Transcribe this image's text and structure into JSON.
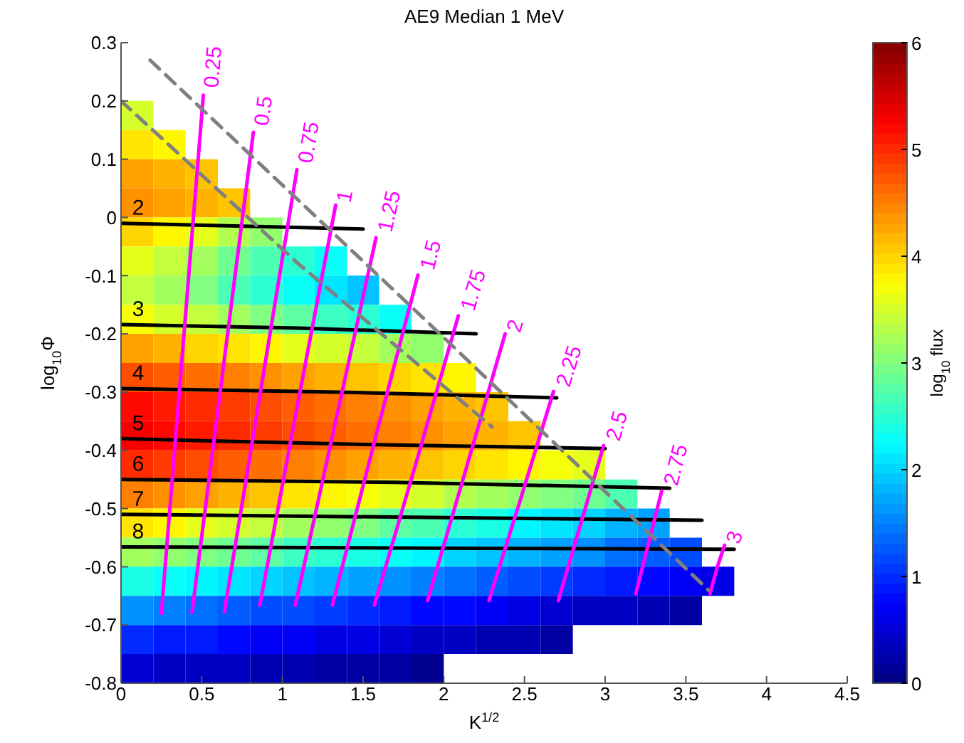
{
  "chart_data": {
    "type": "heatmap",
    "title": "AE9 Median 1 MeV",
    "xlabel": "K$^{1/2}$",
    "ylabel": "log$_{10}$Φ",
    "clabel": "log$_{10}$ flux",
    "x": [
      0.1,
      0.3,
      0.5,
      0.7,
      0.9,
      1.1,
      1.3,
      1.5,
      1.7,
      1.9,
      2.1,
      2.3,
      2.5,
      2.7,
      2.9,
      3.1,
      3.3,
      3.5,
      3.7
    ],
    "y": [
      0.175,
      0.125,
      0.075,
      0.025,
      -0.025,
      -0.075,
      -0.125,
      -0.175,
      -0.225,
      -0.275,
      -0.325,
      -0.375,
      -0.425,
      -0.475,
      -0.525,
      -0.575,
      -0.625,
      -0.675,
      -0.725,
      -0.775
    ],
    "cells": [
      [
        3.5,
        null,
        null,
        null,
        null,
        null,
        null,
        null,
        null,
        null,
        null,
        null,
        null,
        null,
        null,
        null,
        null,
        null,
        null
      ],
      [
        3.9,
        3.8,
        null,
        null,
        null,
        null,
        null,
        null,
        null,
        null,
        null,
        null,
        null,
        null,
        null,
        null,
        null,
        null,
        null
      ],
      [
        4.3,
        4.2,
        4.1,
        null,
        null,
        null,
        null,
        null,
        null,
        null,
        null,
        null,
        null,
        null,
        null,
        null,
        null,
        null,
        null
      ],
      [
        4.4,
        4.3,
        4.2,
        4.1,
        null,
        null,
        null,
        null,
        null,
        null,
        null,
        null,
        null,
        null,
        null,
        null,
        null,
        null,
        null
      ],
      [
        4.0,
        3.8,
        3.6,
        3.3,
        3.1,
        null,
        null,
        null,
        null,
        null,
        null,
        null,
        null,
        null,
        null,
        null,
        null,
        null,
        null
      ],
      [
        3.6,
        3.4,
        3.2,
        2.9,
        2.7,
        2.5,
        2.3,
        null,
        null,
        null,
        null,
        null,
        null,
        null,
        null,
        null,
        null,
        null,
        null
      ],
      [
        3.4,
        3.2,
        3.0,
        2.7,
        2.5,
        2.3,
        2.1,
        1.9,
        null,
        null,
        null,
        null,
        null,
        null,
        null,
        null,
        null,
        null,
        null
      ],
      [
        3.7,
        3.5,
        3.4,
        3.2,
        3.0,
        2.8,
        2.6,
        2.5,
        2.3,
        null,
        null,
        null,
        null,
        null,
        null,
        null,
        null,
        null,
        null
      ],
      [
        4.3,
        4.2,
        4.0,
        3.9,
        3.8,
        3.6,
        3.5,
        3.4,
        3.2,
        3.1,
        null,
        null,
        null,
        null,
        null,
        null,
        null,
        null,
        null
      ],
      [
        4.8,
        4.7,
        4.6,
        4.5,
        4.4,
        4.3,
        4.2,
        4.1,
        4.0,
        3.9,
        3.8,
        null,
        null,
        null,
        null,
        null,
        null,
        null,
        null
      ],
      [
        5.2,
        5.1,
        5.0,
        4.9,
        4.8,
        4.7,
        4.6,
        4.5,
        4.4,
        4.3,
        4.2,
        4.1,
        null,
        null,
        null,
        null,
        null,
        null,
        null
      ],
      [
        5.3,
        5.2,
        5.1,
        5.0,
        4.9,
        4.8,
        4.7,
        4.6,
        4.5,
        4.4,
        4.3,
        4.2,
        4.1,
        null,
        null,
        null,
        null,
        null,
        null
      ],
      [
        5.0,
        4.9,
        4.8,
        4.7,
        4.6,
        4.5,
        4.4,
        4.3,
        4.2,
        4.1,
        4.0,
        3.9,
        3.8,
        3.7,
        3.6,
        null,
        null,
        null,
        null
      ],
      [
        4.5,
        4.4,
        4.3,
        4.2,
        4.1,
        3.9,
        3.8,
        3.7,
        3.6,
        3.5,
        3.3,
        3.2,
        3.1,
        3.0,
        2.9,
        2.7,
        null,
        null,
        null
      ],
      [
        3.9,
        3.8,
        3.6,
        3.5,
        3.4,
        3.2,
        3.1,
        3.0,
        2.8,
        2.7,
        2.5,
        2.4,
        2.2,
        2.1,
        2.0,
        1.8,
        1.7,
        null,
        null
      ],
      [
        3.2,
        3.1,
        3.0,
        2.9,
        2.8,
        2.6,
        2.5,
        2.4,
        2.3,
        2.2,
        2.0,
        1.9,
        1.8,
        1.7,
        1.6,
        1.4,
        1.3,
        1.2,
        null
      ],
      [
        2.4,
        2.3,
        2.2,
        2.1,
        2.0,
        1.9,
        1.8,
        1.7,
        1.6,
        1.5,
        1.4,
        1.3,
        1.2,
        1.1,
        1.0,
        0.9,
        0.8,
        0.7,
        0.6
      ],
      [
        1.6,
        1.5,
        1.4,
        1.3,
        1.2,
        1.2,
        1.1,
        1.0,
        0.9,
        0.8,
        0.8,
        0.7,
        0.6,
        0.5,
        0.4,
        0.4,
        0.3,
        0.2,
        null
      ],
      [
        1.0,
        0.9,
        0.9,
        0.8,
        0.7,
        0.7,
        0.6,
        0.6,
        0.5,
        0.4,
        0.4,
        0.3,
        0.3,
        0.2,
        null,
        null,
        null,
        null,
        null
      ],
      [
        0.5,
        0.4,
        0.4,
        0.4,
        0.3,
        0.3,
        0.2,
        0.2,
        0.2,
        0.1,
        null,
        null,
        null,
        null,
        null,
        null,
        null,
        null,
        null
      ]
    ],
    "clim": [
      0,
      6
    ],
    "cticks": [
      0,
      1,
      2,
      3,
      4,
      5,
      6
    ],
    "xlim": [
      0,
      4.5
    ],
    "xticks": [
      0,
      0.5,
      1,
      1.5,
      2,
      2.5,
      3,
      3.5,
      4,
      4.5
    ],
    "ylim": [
      -0.8,
      0.3
    ],
    "yticks": [
      -0.8,
      -0.7,
      -0.6,
      -0.5,
      -0.4,
      -0.3,
      -0.2,
      -0.1,
      0,
      0.1,
      0.2,
      0.3
    ],
    "series": [
      {
        "type": "line",
        "name": "2",
        "color": "#000000",
        "x": [
          0,
          0.75,
          1.5
        ],
        "values": [
          -0.01,
          -0.015,
          -0.02
        ]
      },
      {
        "type": "line",
        "name": "3",
        "color": "#000000",
        "x": [
          0,
          1.1,
          2.2
        ],
        "values": [
          -0.184,
          -0.19,
          -0.2
        ]
      },
      {
        "type": "line",
        "name": "4",
        "color": "#000000",
        "x": [
          0,
          1.35,
          2.7
        ],
        "values": [
          -0.294,
          -0.3,
          -0.31
        ]
      },
      {
        "type": "line",
        "name": "5",
        "color": "#000000",
        "x": [
          0,
          1.5,
          3.0
        ],
        "values": [
          -0.38,
          -0.39,
          -0.397
        ]
      },
      {
        "type": "line",
        "name": "6",
        "color": "#000000",
        "x": [
          0,
          1.7,
          3.4
        ],
        "values": [
          -0.45,
          -0.455,
          -0.465
        ]
      },
      {
        "type": "line",
        "name": "7",
        "color": "#000000",
        "x": [
          0,
          1.8,
          3.6
        ],
        "values": [
          -0.51,
          -0.515,
          -0.52
        ]
      },
      {
        "type": "line",
        "name": "8",
        "color": "#000000",
        "x": [
          0,
          1.9,
          3.8
        ],
        "values": [
          -0.566,
          -0.568,
          -0.57
        ]
      },
      {
        "type": "line",
        "name": "0.25",
        "color": "#ff00ff",
        "x": [
          0.25,
          0.38,
          0.51
        ],
        "values": [
          -0.68,
          -0.235,
          0.21
        ]
      },
      {
        "type": "line",
        "name": "0.5",
        "color": "#ff00ff",
        "x": [
          0.44,
          0.63,
          0.82
        ],
        "values": [
          -0.678,
          -0.266,
          0.146
        ]
      },
      {
        "type": "line",
        "name": "0.75",
        "color": "#ff00ff",
        "x": [
          0.64,
          0.865,
          1.09
        ],
        "values": [
          -0.678,
          -0.298,
          0.082
        ]
      },
      {
        "type": "line",
        "name": "1",
        "color": "#ff00ff",
        "x": [
          0.86,
          1.095,
          1.33
        ],
        "values": [
          -0.666,
          -0.32,
          0.021
        ]
      },
      {
        "type": "line",
        "name": "1.25",
        "color": "#ff00ff",
        "x": [
          1.08,
          1.33,
          1.58
        ],
        "values": [
          -0.666,
          -0.35,
          -0.035
        ]
      },
      {
        "type": "line",
        "name": "1.5",
        "color": "#ff00ff",
        "x": [
          1.31,
          1.575,
          1.84
        ],
        "values": [
          -0.666,
          -0.38,
          -0.099
        ]
      },
      {
        "type": "line",
        "name": "1.75",
        "color": "#ff00ff",
        "x": [
          1.57,
          1.83,
          2.09
        ],
        "values": [
          -0.666,
          -0.42,
          -0.169
        ]
      },
      {
        "type": "line",
        "name": "2",
        "color": "#ff00ff",
        "x": [
          1.9,
          2.14,
          2.38
        ],
        "values": [
          -0.658,
          -0.43,
          -0.2
        ]
      },
      {
        "type": "line",
        "name": "2.25",
        "color": "#ff00ff",
        "x": [
          2.28,
          2.48,
          2.68
        ],
        "values": [
          -0.658,
          -0.48,
          -0.299
        ]
      },
      {
        "type": "line",
        "name": "2.5",
        "color": "#ff00ff",
        "x": [
          2.71,
          2.85,
          2.99
        ],
        "values": [
          -0.658,
          -0.525,
          -0.392
        ]
      },
      {
        "type": "line",
        "name": "2.75",
        "color": "#ff00ff",
        "x": [
          3.19,
          3.27,
          3.35
        ],
        "values": [
          -0.646,
          -0.558,
          -0.47
        ]
      },
      {
        "type": "line",
        "name": "3",
        "color": "#ff00ff",
        "x": [
          3.65,
          3.695,
          3.74
        ],
        "values": [
          -0.646,
          -0.6,
          -0.563
        ]
      },
      {
        "type": "line",
        "color": "#808080",
        "line_style": "dashed",
        "x": [
          0,
          1.1,
          2.3
        ],
        "values": [
          0.2,
          -0.08,
          -0.36
        ]
      },
      {
        "type": "line",
        "color": "#808080",
        "line_style": "dashed",
        "x": [
          0.18,
          1.9,
          3.64
        ],
        "values": [
          0.27,
          -0.18,
          -0.64
        ]
      }
    ]
  }
}
